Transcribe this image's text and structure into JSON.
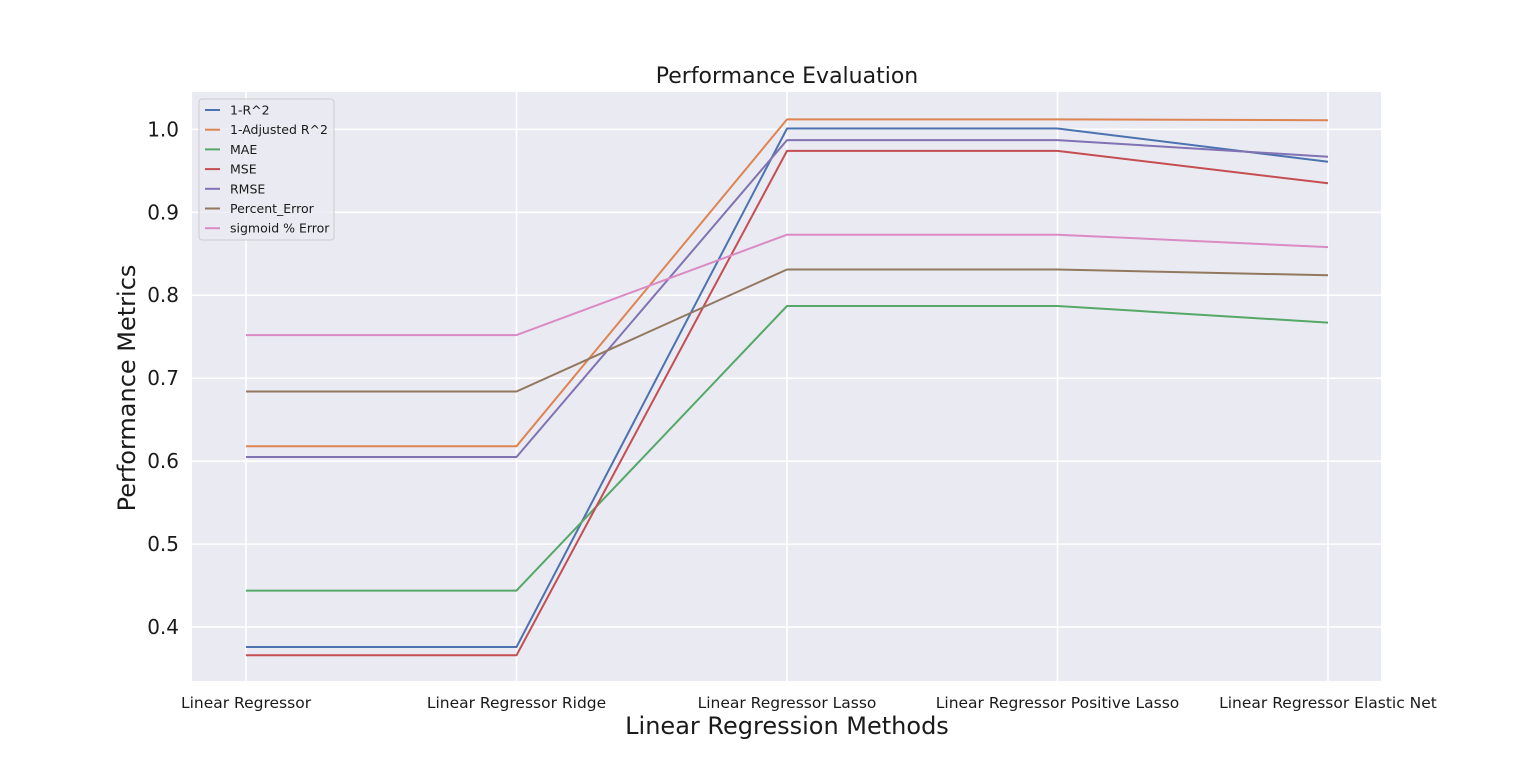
{
  "chart_data": {
    "type": "line",
    "title": "Performance Evaluation",
    "xlabel": "Linear Regression Methods",
    "ylabel": "Performance Metrics",
    "categories": [
      "Linear Regressor",
      "Linear Regressor Ridge",
      "Linear Regressor Lasso",
      "Linear Regressor Positive Lasso",
      "Linear Regressor Elastic Net"
    ],
    "ylim": [
      0.335,
      1.045
    ],
    "yticks": [
      "0.4",
      "0.5",
      "0.6",
      "0.7",
      "0.8",
      "0.9",
      "1.0"
    ],
    "grid": true,
    "legend_position": "upper-left",
    "background": "#eaeaf2",
    "series": [
      {
        "name": "1-R^2",
        "color": "#4c72b0",
        "values": [
          0.376,
          0.376,
          1.001,
          1.001,
          0.961
        ]
      },
      {
        "name": "1-Adjusted R^2",
        "color": "#dd8452",
        "values": [
          0.618,
          0.618,
          1.012,
          1.012,
          1.011
        ]
      },
      {
        "name": "MAE",
        "color": "#55a868",
        "values": [
          0.444,
          0.444,
          0.787,
          0.787,
          0.767
        ]
      },
      {
        "name": "MSE",
        "color": "#c44e52",
        "values": [
          0.366,
          0.366,
          0.974,
          0.974,
          0.935
        ]
      },
      {
        "name": "RMSE",
        "color": "#8172b3",
        "values": [
          0.605,
          0.605,
          0.987,
          0.987,
          0.967
        ]
      },
      {
        "name": "Percent_Error",
        "color": "#937860",
        "values": [
          0.684,
          0.684,
          0.831,
          0.831,
          0.824
        ]
      },
      {
        "name": "sigmoid % Error",
        "color": "#da8bc3",
        "values": [
          0.752,
          0.752,
          0.873,
          0.873,
          0.858
        ]
      }
    ]
  }
}
